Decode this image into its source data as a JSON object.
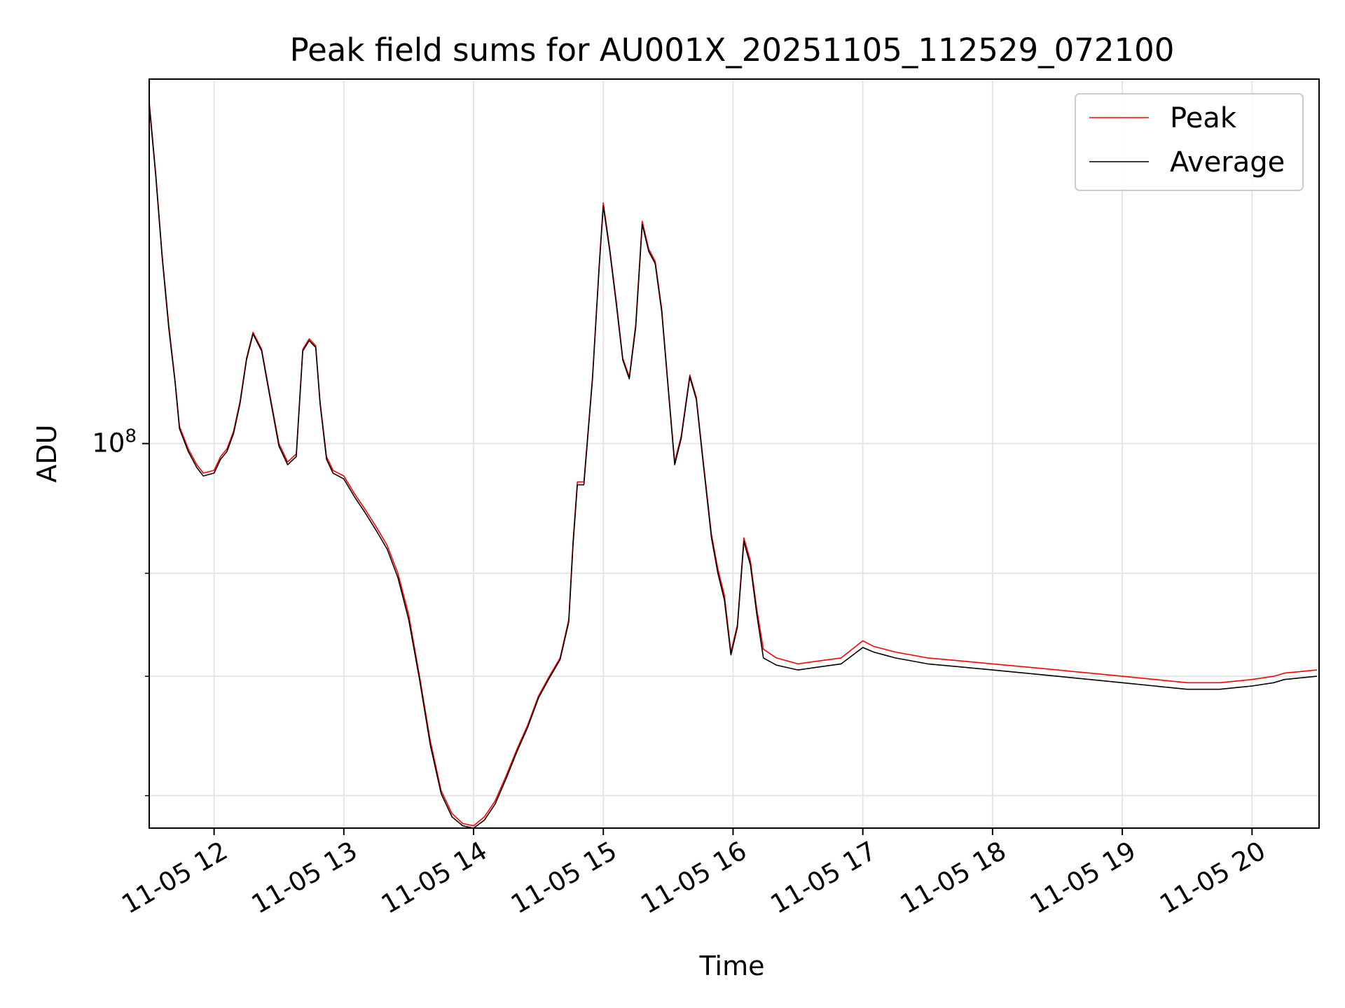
{
  "chart_data": {
    "type": "line",
    "title": "Peak field sums for AU001X_20251105_112529_072100",
    "xlabel": "Time",
    "ylabel": "ADU",
    "y_scale": "log",
    "ylim": [
      22000000,
      420000000
    ],
    "xlim": [
      "2025-11-05 11:30",
      "2025-11-05 20:31"
    ],
    "x_ticks": [
      {
        "t": "2025-11-05 12:00",
        "label": "11-05 12"
      },
      {
        "t": "2025-11-05 13:00",
        "label": "11-05 13"
      },
      {
        "t": "2025-11-05 14:00",
        "label": "11-05 14"
      },
      {
        "t": "2025-11-05 15:00",
        "label": "11-05 15"
      },
      {
        "t": "2025-11-05 16:00",
        "label": "11-05 16"
      },
      {
        "t": "2025-11-05 17:00",
        "label": "11-05 17"
      },
      {
        "t": "2025-11-05 18:00",
        "label": "11-05 18"
      },
      {
        "t": "2025-11-05 19:00",
        "label": "11-05 19"
      },
      {
        "t": "2025-11-05 20:00",
        "label": "11-05 20"
      }
    ],
    "y_ticks": [
      {
        "v": 100000000,
        "base": "10",
        "exp": "8"
      }
    ],
    "y_minor_ticks": [
      25000000,
      40000000,
      60000000
    ],
    "grid": true,
    "legend_position": "top-right",
    "series": [
      {
        "name": "Peak",
        "color": "#ff0000",
        "points": [
          [
            "2025-11-05 11:30",
            385000000
          ],
          [
            "2025-11-05 11:33",
            290000000
          ],
          [
            "2025-11-05 11:36",
            210000000
          ],
          [
            "2025-11-05 11:39",
            160000000
          ],
          [
            "2025-11-05 11:42",
            128000000
          ],
          [
            "2025-11-05 11:44",
            107000000
          ],
          [
            "2025-11-05 11:48",
            98000000
          ],
          [
            "2025-11-05 11:52",
            92000000
          ],
          [
            "2025-11-05 11:55",
            89000000
          ],
          [
            "2025-11-05 12:00",
            90000000
          ],
          [
            "2025-11-05 12:03",
            95000000
          ],
          [
            "2025-11-05 12:06",
            98000000
          ],
          [
            "2025-11-05 12:09",
            105000000
          ],
          [
            "2025-11-05 12:12",
            118000000
          ],
          [
            "2025-11-05 12:15",
            140000000
          ],
          [
            "2025-11-05 12:18",
            155000000
          ],
          [
            "2025-11-05 12:22",
            145000000
          ],
          [
            "2025-11-05 12:26",
            120000000
          ],
          [
            "2025-11-05 12:30",
            100000000
          ],
          [
            "2025-11-05 12:34",
            93000000
          ],
          [
            "2025-11-05 12:38",
            96000000
          ],
          [
            "2025-11-05 12:41",
            145000000
          ],
          [
            "2025-11-05 12:44",
            151000000
          ],
          [
            "2025-11-05 12:47",
            147000000
          ],
          [
            "2025-11-05 12:49",
            118000000
          ],
          [
            "2025-11-05 12:52",
            95000000
          ],
          [
            "2025-11-05 12:55",
            90000000
          ],
          [
            "2025-11-05 13:00",
            88000000
          ],
          [
            "2025-11-05 13:05",
            82000000
          ],
          [
            "2025-11-05 13:10",
            77000000
          ],
          [
            "2025-11-05 13:15",
            72000000
          ],
          [
            "2025-11-05 13:20",
            67000000
          ],
          [
            "2025-11-05 13:25",
            60000000
          ],
          [
            "2025-11-05 13:30",
            51000000
          ],
          [
            "2025-11-05 13:35",
            40000000
          ],
          [
            "2025-11-05 13:40",
            31000000
          ],
          [
            "2025-11-05 13:45",
            25500000
          ],
          [
            "2025-11-05 13:50",
            23300000
          ],
          [
            "2025-11-05 13:55",
            22400000
          ],
          [
            "2025-11-05 14:00",
            22200000
          ],
          [
            "2025-11-05 14:05",
            23000000
          ],
          [
            "2025-11-05 14:10",
            24500000
          ],
          [
            "2025-11-05 14:15",
            27000000
          ],
          [
            "2025-11-05 14:20",
            30000000
          ],
          [
            "2025-11-05 14:25",
            33000000
          ],
          [
            "2025-11-05 14:30",
            37000000
          ],
          [
            "2025-11-05 14:35",
            40000000
          ],
          [
            "2025-11-05 14:40",
            43000000
          ],
          [
            "2025-11-05 14:44",
            50000000
          ],
          [
            "2025-11-05 14:46",
            68000000
          ],
          [
            "2025-11-05 14:48",
            86000000
          ],
          [
            "2025-11-05 14:51",
            86000000
          ],
          [
            "2025-11-05 14:55",
            130000000
          ],
          [
            "2025-11-05 14:58",
            200000000
          ],
          [
            "2025-11-05 15:00",
            258000000
          ],
          [
            "2025-11-05 15:03",
            215000000
          ],
          [
            "2025-11-05 15:06",
            175000000
          ],
          [
            "2025-11-05 15:09",
            140000000
          ],
          [
            "2025-11-05 15:12",
            130000000
          ],
          [
            "2025-11-05 15:15",
            160000000
          ],
          [
            "2025-11-05 15:18",
            240000000
          ],
          [
            "2025-11-05 15:21",
            215000000
          ],
          [
            "2025-11-05 15:24",
            205000000
          ],
          [
            "2025-11-05 15:27",
            170000000
          ],
          [
            "2025-11-05 15:30",
            125000000
          ],
          [
            "2025-11-05 15:33",
            93000000
          ],
          [
            "2025-11-05 15:36",
            103000000
          ],
          [
            "2025-11-05 15:40",
            131000000
          ],
          [
            "2025-11-05 15:43",
            120000000
          ],
          [
            "2025-11-05 15:46",
            95000000
          ],
          [
            "2025-11-05 15:50",
            70000000
          ],
          [
            "2025-11-05 15:53",
            61000000
          ],
          [
            "2025-11-05 15:56",
            55000000
          ],
          [
            "2025-11-05 15:59",
            44000000
          ],
          [
            "2025-11-05 16:02",
            49000000
          ],
          [
            "2025-11-05 16:05",
            69000000
          ],
          [
            "2025-11-05 16:08",
            63000000
          ],
          [
            "2025-11-05 16:11",
            52000000
          ],
          [
            "2025-11-05 16:14",
            44500000
          ],
          [
            "2025-11-05 16:20",
            43000000
          ],
          [
            "2025-11-05 16:30",
            42000000
          ],
          [
            "2025-11-05 16:40",
            42500000
          ],
          [
            "2025-11-05 16:50",
            43000000
          ],
          [
            "2025-11-05 17:00",
            46000000
          ],
          [
            "2025-11-05 17:05",
            45000000
          ],
          [
            "2025-11-05 17:15",
            44000000
          ],
          [
            "2025-11-05 17:30",
            43000000
          ],
          [
            "2025-11-05 17:45",
            42500000
          ],
          [
            "2025-11-05 18:00",
            42000000
          ],
          [
            "2025-11-05 18:15",
            41500000
          ],
          [
            "2025-11-05 18:30",
            41000000
          ],
          [
            "2025-11-05 18:45",
            40500000
          ],
          [
            "2025-11-05 19:00",
            40000000
          ],
          [
            "2025-11-05 19:15",
            39500000
          ],
          [
            "2025-11-05 19:30",
            39000000
          ],
          [
            "2025-11-05 19:45",
            39000000
          ],
          [
            "2025-11-05 20:00",
            39500000
          ],
          [
            "2025-11-05 20:10",
            40000000
          ],
          [
            "2025-11-05 20:15",
            40500000
          ],
          [
            "2025-11-05 20:30",
            41000000
          ]
        ]
      },
      {
        "name": "Average",
        "color": "#000000",
        "points": [
          [
            "2025-11-05 11:30",
            380000000
          ],
          [
            "2025-11-05 11:33",
            287000000
          ],
          [
            "2025-11-05 11:36",
            208000000
          ],
          [
            "2025-11-05 11:39",
            158000000
          ],
          [
            "2025-11-05 11:42",
            127000000
          ],
          [
            "2025-11-05 11:44",
            106000000
          ],
          [
            "2025-11-05 11:48",
            97000000
          ],
          [
            "2025-11-05 11:52",
            91000000
          ],
          [
            "2025-11-05 11:55",
            88000000
          ],
          [
            "2025-11-05 12:00",
            89000000
          ],
          [
            "2025-11-05 12:03",
            94000000
          ],
          [
            "2025-11-05 12:06",
            97000000
          ],
          [
            "2025-11-05 12:09",
            104000000
          ],
          [
            "2025-11-05 12:12",
            117000000
          ],
          [
            "2025-11-05 12:15",
            139000000
          ],
          [
            "2025-11-05 12:18",
            154000000
          ],
          [
            "2025-11-05 12:22",
            144000000
          ],
          [
            "2025-11-05 12:26",
            119000000
          ],
          [
            "2025-11-05 12:30",
            99000000
          ],
          [
            "2025-11-05 12:34",
            92000000
          ],
          [
            "2025-11-05 12:38",
            95000000
          ],
          [
            "2025-11-05 12:41",
            144000000
          ],
          [
            "2025-11-05 12:44",
            150000000
          ],
          [
            "2025-11-05 12:47",
            146000000
          ],
          [
            "2025-11-05 12:49",
            117000000
          ],
          [
            "2025-11-05 12:52",
            94000000
          ],
          [
            "2025-11-05 12:55",
            89000000
          ],
          [
            "2025-11-05 13:00",
            87000000
          ],
          [
            "2025-11-05 13:05",
            81000000
          ],
          [
            "2025-11-05 13:10",
            76000000
          ],
          [
            "2025-11-05 13:15",
            71000000
          ],
          [
            "2025-11-05 13:20",
            66000000
          ],
          [
            "2025-11-05 13:25",
            59000000
          ],
          [
            "2025-11-05 13:30",
            50000000
          ],
          [
            "2025-11-05 13:35",
            39500000
          ],
          [
            "2025-11-05 13:40",
            30500000
          ],
          [
            "2025-11-05 13:45",
            25200000
          ],
          [
            "2025-11-05 13:50",
            23000000
          ],
          [
            "2025-11-05 13:55",
            22200000
          ],
          [
            "2025-11-05 14:00",
            22000000
          ],
          [
            "2025-11-05 14:05",
            22700000
          ],
          [
            "2025-11-05 14:10",
            24200000
          ],
          [
            "2025-11-05 14:15",
            26700000
          ],
          [
            "2025-11-05 14:20",
            29700000
          ],
          [
            "2025-11-05 14:25",
            32700000
          ],
          [
            "2025-11-05 14:30",
            36700000
          ],
          [
            "2025-11-05 14:35",
            39700000
          ],
          [
            "2025-11-05 14:40",
            42700000
          ],
          [
            "2025-11-05 14:44",
            49500000
          ],
          [
            "2025-11-05 14:46",
            67000000
          ],
          [
            "2025-11-05 14:48",
            85000000
          ],
          [
            "2025-11-05 14:51",
            85000000
          ],
          [
            "2025-11-05 14:55",
            129000000
          ],
          [
            "2025-11-05 14:58",
            198000000
          ],
          [
            "2025-11-05 15:00",
            255000000
          ],
          [
            "2025-11-05 15:03",
            213000000
          ],
          [
            "2025-11-05 15:06",
            173000000
          ],
          [
            "2025-11-05 15:09",
            139000000
          ],
          [
            "2025-11-05 15:12",
            129000000
          ],
          [
            "2025-11-05 15:15",
            158000000
          ],
          [
            "2025-11-05 15:18",
            237000000
          ],
          [
            "2025-11-05 15:21",
            213000000
          ],
          [
            "2025-11-05 15:24",
            203000000
          ],
          [
            "2025-11-05 15:27",
            168000000
          ],
          [
            "2025-11-05 15:30",
            124000000
          ],
          [
            "2025-11-05 15:33",
            92000000
          ],
          [
            "2025-11-05 15:36",
            102000000
          ],
          [
            "2025-11-05 15:40",
            130000000
          ],
          [
            "2025-11-05 15:43",
            119000000
          ],
          [
            "2025-11-05 15:46",
            94000000
          ],
          [
            "2025-11-05 15:50",
            69000000
          ],
          [
            "2025-11-05 15:53",
            60000000
          ],
          [
            "2025-11-05 15:56",
            54000000
          ],
          [
            "2025-11-05 15:59",
            43500000
          ],
          [
            "2025-11-05 16:02",
            48500000
          ],
          [
            "2025-11-05 16:05",
            68000000
          ],
          [
            "2025-11-05 16:08",
            62000000
          ],
          [
            "2025-11-05 16:11",
            51000000
          ],
          [
            "2025-11-05 16:14",
            43000000
          ],
          [
            "2025-11-05 16:20",
            41800000
          ],
          [
            "2025-11-05 16:30",
            41000000
          ],
          [
            "2025-11-05 16:40",
            41500000
          ],
          [
            "2025-11-05 16:50",
            42000000
          ],
          [
            "2025-11-05 17:00",
            44800000
          ],
          [
            "2025-11-05 17:05",
            44000000
          ],
          [
            "2025-11-05 17:15",
            43000000
          ],
          [
            "2025-11-05 17:30",
            42000000
          ],
          [
            "2025-11-05 17:45",
            41500000
          ],
          [
            "2025-11-05 18:00",
            41000000
          ],
          [
            "2025-11-05 18:15",
            40500000
          ],
          [
            "2025-11-05 18:30",
            40000000
          ],
          [
            "2025-11-05 18:45",
            39500000
          ],
          [
            "2025-11-05 19:00",
            39000000
          ],
          [
            "2025-11-05 19:15",
            38500000
          ],
          [
            "2025-11-05 19:30",
            38000000
          ],
          [
            "2025-11-05 19:45",
            38000000
          ],
          [
            "2025-11-05 20:00",
            38500000
          ],
          [
            "2025-11-05 20:10",
            39000000
          ],
          [
            "2025-11-05 20:15",
            39500000
          ],
          [
            "2025-11-05 20:30",
            40000000
          ]
        ]
      }
    ]
  }
}
